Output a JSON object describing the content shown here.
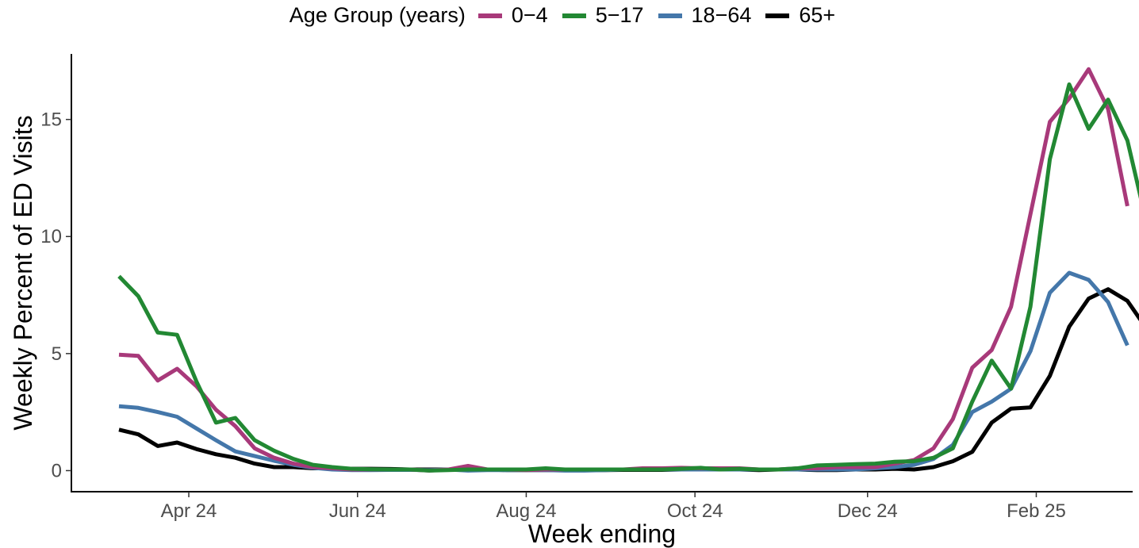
{
  "chart_data": {
    "type": "line",
    "title": "",
    "xlabel": "Week ending",
    "ylabel": "Weekly Percent of ED Visits",
    "legend_title": "Age Group (years)",
    "legend_position": "top",
    "grid": false,
    "ylim": [
      -0.9,
      17.8
    ],
    "yticks": [
      0,
      5,
      10,
      15
    ],
    "xticks": [
      "Apr 24",
      "Jun 24",
      "Aug 24",
      "Oct 24",
      "Dec 24",
      "Feb 25"
    ],
    "xtick_weeks": [
      3.6,
      12.3,
      21.0,
      29.7,
      38.6,
      47.3
    ],
    "x": [
      "2024-03-16",
      "2024-03-23",
      "2024-03-30",
      "2024-04-06",
      "2024-04-13",
      "2024-04-20",
      "2024-04-27",
      "2024-05-04",
      "2024-05-11",
      "2024-05-18",
      "2024-05-25",
      "2024-06-01",
      "2024-06-08",
      "2024-06-15",
      "2024-06-22",
      "2024-06-29",
      "2024-07-06",
      "2024-07-13",
      "2024-07-20",
      "2024-07-27",
      "2024-08-03",
      "2024-08-10",
      "2024-08-17",
      "2024-08-24",
      "2024-08-31",
      "2024-09-07",
      "2024-09-14",
      "2024-09-21",
      "2024-09-28",
      "2024-10-05",
      "2024-10-12",
      "2024-10-19",
      "2024-10-26",
      "2024-11-02",
      "2024-11-09",
      "2024-11-16",
      "2024-11-23",
      "2024-11-30",
      "2024-12-07",
      "2024-12-14",
      "2024-12-21",
      "2024-12-28",
      "2025-01-04",
      "2025-01-11",
      "2025-01-18",
      "2025-01-25",
      "2025-02-01",
      "2025-02-08",
      "2025-02-15",
      "2025-02-22",
      "2025-03-01"
    ],
    "series": [
      {
        "name": "0−4",
        "color": "#a8397a",
        "values": [
          4.95,
          4.9,
          3.85,
          4.35,
          3.6,
          2.6,
          1.9,
          0.95,
          0.55,
          0.3,
          0.15,
          0.1,
          0.05,
          0.05,
          0.05,
          0.05,
          0.0,
          0.05,
          0.2,
          0.05,
          0.05,
          0.02,
          0.05,
          0.05,
          0.05,
          0.05,
          0.05,
          0.1,
          0.1,
          0.12,
          0.1,
          0.1,
          0.1,
          0.05,
          0.05,
          0.1,
          0.1,
          0.15,
          0.15,
          0.15,
          0.3,
          0.45,
          0.95,
          2.2,
          4.4,
          5.15,
          7.0,
          10.95,
          14.9,
          15.9,
          17.15
        ]
      },
      {
        "name": "5−17",
        "color": "#228833",
        "values": [
          8.3,
          7.45,
          5.9,
          5.8,
          3.8,
          2.05,
          2.25,
          1.3,
          0.85,
          0.5,
          0.25,
          0.15,
          0.08,
          0.06,
          0.05,
          0.05,
          0.0,
          0.02,
          0.05,
          0.05,
          0.05,
          0.05,
          0.1,
          0.05,
          0.05,
          0.05,
          0.05,
          0.05,
          0.05,
          0.08,
          0.12,
          0.05,
          0.08,
          0.05,
          0.05,
          0.1,
          0.22,
          0.25,
          0.28,
          0.3,
          0.38,
          0.4,
          0.55,
          0.95,
          2.95,
          4.7,
          3.5,
          7.0,
          13.3,
          16.5,
          14.6
        ]
      },
      {
        "name": "18−64",
        "color": "#4477aa",
        "values": [
          2.75,
          2.68,
          2.5,
          2.3,
          1.8,
          1.3,
          0.82,
          0.62,
          0.42,
          0.25,
          0.12,
          0.05,
          0.02,
          0.02,
          0.03,
          0.03,
          0.02,
          0.05,
          0.0,
          0.02,
          0.02,
          0.02,
          0.02,
          0.0,
          0.0,
          0.02,
          0.05,
          0.05,
          0.05,
          0.05,
          0.05,
          0.05,
          0.05,
          0.05,
          0.05,
          0.05,
          0.05,
          0.05,
          0.05,
          0.1,
          0.15,
          0.25,
          0.5,
          1.1,
          2.5,
          2.95,
          3.5,
          5.1,
          7.6,
          8.45,
          8.15
        ]
      },
      {
        "name": "65+",
        "color": "#000000",
        "values": [
          1.75,
          1.55,
          1.05,
          1.2,
          0.92,
          0.7,
          0.55,
          0.3,
          0.15,
          0.15,
          0.1,
          0.1,
          0.08,
          0.08,
          0.07,
          0.05,
          0.05,
          0.05,
          0.05,
          0.05,
          0.02,
          0.02,
          0.02,
          0.02,
          0.02,
          0.02,
          0.03,
          0.03,
          0.03,
          0.05,
          0.05,
          0.05,
          0.05,
          0.02,
          0.05,
          0.05,
          0.02,
          0.02,
          0.05,
          0.05,
          0.08,
          0.05,
          0.15,
          0.4,
          0.8,
          2.05,
          2.65,
          2.7,
          4.05,
          6.15,
          7.35
        ]
      }
    ],
    "series_tail": [
      {
        "name": "0−4",
        "values": [
          15.45,
          11.3
        ]
      },
      {
        "name": "5−17",
        "values": [
          15.85,
          14.1,
          10.55
        ]
      },
      {
        "name": "18−64",
        "values": [
          7.2,
          5.35
        ]
      },
      {
        "name": "65+",
        "values": [
          7.75,
          7.25,
          6.05
        ]
      }
    ]
  }
}
